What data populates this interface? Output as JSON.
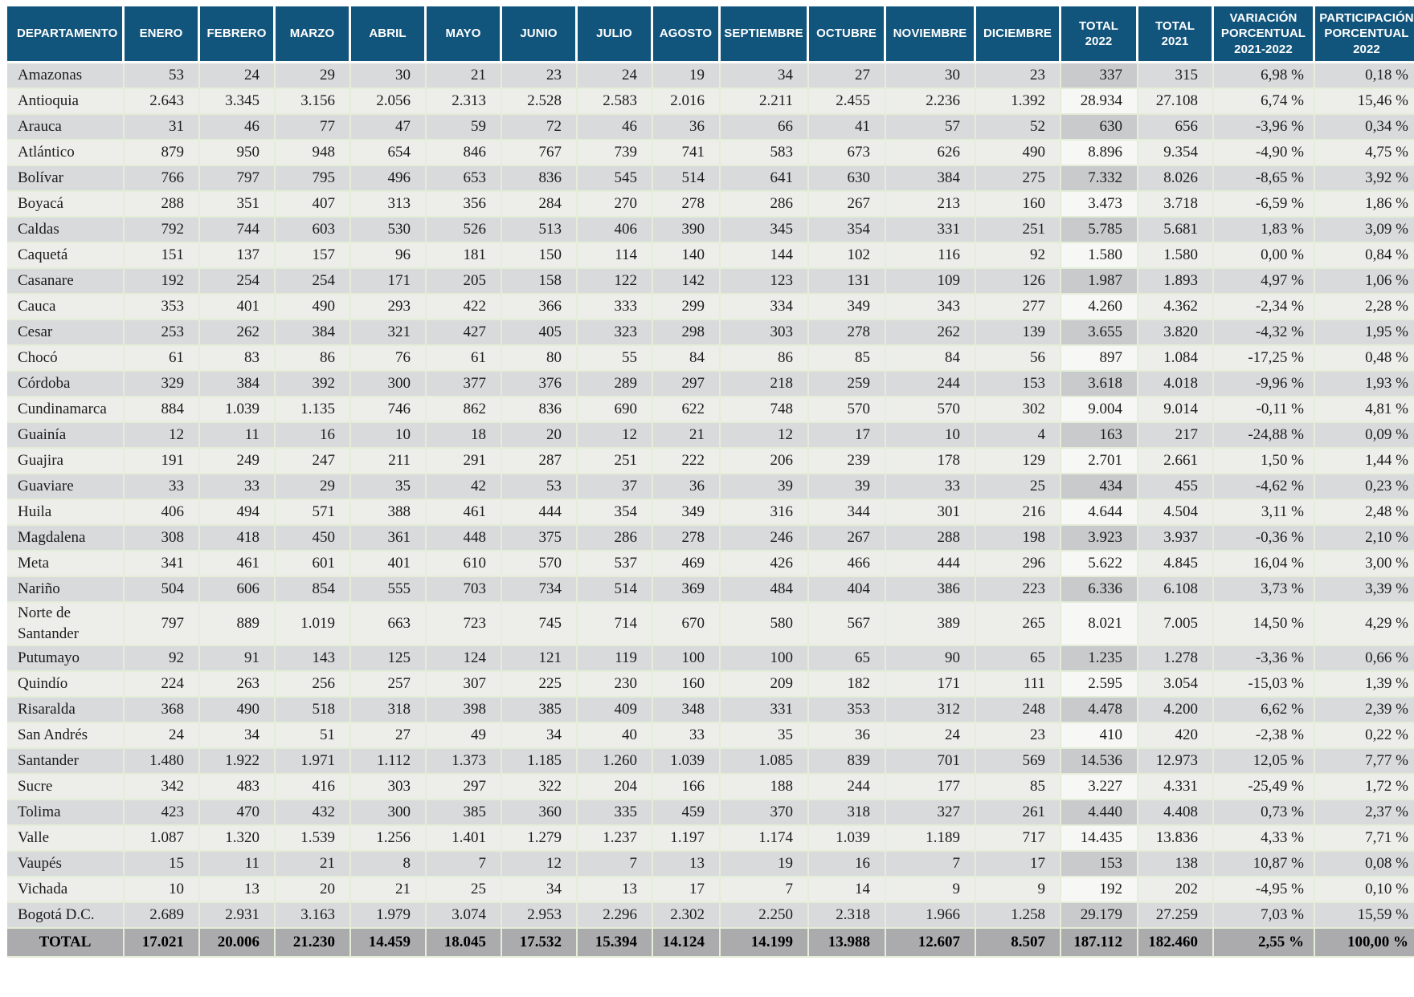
{
  "colors": {
    "header_bg": "#11547c",
    "header_text": "#ffffff",
    "row_odd": "#d9dadb",
    "row_even": "#edeeea",
    "t22_odd": "#c9cacc",
    "t22_even": "#f7f8f5",
    "total_row_bg": "#ababad",
    "grid_line": "#e3edd8",
    "body_text": "#1c1c1c"
  },
  "table": {
    "headers": [
      "DEPARTAMENTO",
      "ENERO",
      "FEBRERO",
      "MARZO",
      "ABRIL",
      "MAYO",
      "JUNIO",
      "JULIO",
      "AGOSTO",
      "SEPTIEMBRE",
      "OCTUBRE",
      "NOVIEMBRE",
      "DICIEMBRE",
      "TOTAL\n2022",
      "TOTAL\n2021",
      "VARIACIÓN\nPORCENTUAL\n2021-2022",
      "PARTICIPACIÓN\nPORCENTUAL\n2022"
    ],
    "rows": [
      {
        "department": "Amazonas",
        "values": [
          "53",
          "24",
          "29",
          "30",
          "21",
          "23",
          "24",
          "19",
          "34",
          "27",
          "30",
          "23",
          "337",
          "315",
          "6,98 %",
          "0,18 %"
        ]
      },
      {
        "department": "Antioquia",
        "values": [
          "2.643",
          "3.345",
          "3.156",
          "2.056",
          "2.313",
          "2.528",
          "2.583",
          "2.016",
          "2.211",
          "2.455",
          "2.236",
          "1.392",
          "28.934",
          "27.108",
          "6,74 %",
          "15,46 %"
        ]
      },
      {
        "department": "Arauca",
        "values": [
          "31",
          "46",
          "77",
          "47",
          "59",
          "72",
          "46",
          "36",
          "66",
          "41",
          "57",
          "52",
          "630",
          "656",
          "-3,96 %",
          "0,34 %"
        ]
      },
      {
        "department": "Atlántico",
        "values": [
          "879",
          "950",
          "948",
          "654",
          "846",
          "767",
          "739",
          "741",
          "583",
          "673",
          "626",
          "490",
          "8.896",
          "9.354",
          "-4,90 %",
          "4,75 %"
        ]
      },
      {
        "department": "Bolívar",
        "values": [
          "766",
          "797",
          "795",
          "496",
          "653",
          "836",
          "545",
          "514",
          "641",
          "630",
          "384",
          "275",
          "7.332",
          "8.026",
          "-8,65 %",
          "3,92 %"
        ]
      },
      {
        "department": "Boyacá",
        "values": [
          "288",
          "351",
          "407",
          "313",
          "356",
          "284",
          "270",
          "278",
          "286",
          "267",
          "213",
          "160",
          "3.473",
          "3.718",
          "-6,59 %",
          "1,86 %"
        ]
      },
      {
        "department": "Caldas",
        "values": [
          "792",
          "744",
          "603",
          "530",
          "526",
          "513",
          "406",
          "390",
          "345",
          "354",
          "331",
          "251",
          "5.785",
          "5.681",
          "1,83 %",
          "3,09 %"
        ]
      },
      {
        "department": "Caquetá",
        "values": [
          "151",
          "137",
          "157",
          "96",
          "181",
          "150",
          "114",
          "140",
          "144",
          "102",
          "116",
          "92",
          "1.580",
          "1.580",
          "0,00 %",
          "0,84 %"
        ]
      },
      {
        "department": "Casanare",
        "values": [
          "192",
          "254",
          "254",
          "171",
          "205",
          "158",
          "122",
          "142",
          "123",
          "131",
          "109",
          "126",
          "1.987",
          "1.893",
          "4,97 %",
          "1,06 %"
        ]
      },
      {
        "department": "Cauca",
        "values": [
          "353",
          "401",
          "490",
          "293",
          "422",
          "366",
          "333",
          "299",
          "334",
          "349",
          "343",
          "277",
          "4.260",
          "4.362",
          "-2,34 %",
          "2,28 %"
        ]
      },
      {
        "department": "Cesar",
        "values": [
          "253",
          "262",
          "384",
          "321",
          "427",
          "405",
          "323",
          "298",
          "303",
          "278",
          "262",
          "139",
          "3.655",
          "3.820",
          "-4,32 %",
          "1,95 %"
        ]
      },
      {
        "department": "Chocó",
        "values": [
          "61",
          "83",
          "86",
          "76",
          "61",
          "80",
          "55",
          "84",
          "86",
          "85",
          "84",
          "56",
          "897",
          "1.084",
          "-17,25 %",
          "0,48 %"
        ]
      },
      {
        "department": "Córdoba",
        "values": [
          "329",
          "384",
          "392",
          "300",
          "377",
          "376",
          "289",
          "297",
          "218",
          "259",
          "244",
          "153",
          "3.618",
          "4.018",
          "-9,96 %",
          "1,93 %"
        ]
      },
      {
        "department": "Cundinamarca",
        "values": [
          "884",
          "1.039",
          "1.135",
          "746",
          "862",
          "836",
          "690",
          "622",
          "748",
          "570",
          "570",
          "302",
          "9.004",
          "9.014",
          "-0,11 %",
          "4,81 %"
        ]
      },
      {
        "department": "Guainía",
        "values": [
          "12",
          "11",
          "16",
          "10",
          "18",
          "20",
          "12",
          "21",
          "12",
          "17",
          "10",
          "4",
          "163",
          "217",
          "-24,88 %",
          "0,09 %"
        ]
      },
      {
        "department": "Guajira",
        "values": [
          "191",
          "249",
          "247",
          "211",
          "291",
          "287",
          "251",
          "222",
          "206",
          "239",
          "178",
          "129",
          "2.701",
          "2.661",
          "1,50 %",
          "1,44 %"
        ]
      },
      {
        "department": "Guaviare",
        "values": [
          "33",
          "33",
          "29",
          "35",
          "42",
          "53",
          "37",
          "36",
          "39",
          "39",
          "33",
          "25",
          "434",
          "455",
          "-4,62 %",
          "0,23 %"
        ]
      },
      {
        "department": "Huila",
        "values": [
          "406",
          "494",
          "571",
          "388",
          "461",
          "444",
          "354",
          "349",
          "316",
          "344",
          "301",
          "216",
          "4.644",
          "4.504",
          "3,11 %",
          "2,48 %"
        ]
      },
      {
        "department": "Magdalena",
        "values": [
          "308",
          "418",
          "450",
          "361",
          "448",
          "375",
          "286",
          "278",
          "246",
          "267",
          "288",
          "198",
          "3.923",
          "3.937",
          "-0,36 %",
          "2,10 %"
        ]
      },
      {
        "department": "Meta",
        "values": [
          "341",
          "461",
          "601",
          "401",
          "610",
          "570",
          "537",
          "469",
          "426",
          "466",
          "444",
          "296",
          "5.622",
          "4.845",
          "16,04 %",
          "3,00 %"
        ]
      },
      {
        "department": "Nariño",
        "values": [
          "504",
          "606",
          "854",
          "555",
          "703",
          "734",
          "514",
          "369",
          "484",
          "404",
          "386",
          "223",
          "6.336",
          "6.108",
          "3,73 %",
          "3,39 %"
        ]
      },
      {
        "department": "Norte de Santander",
        "values": [
          "797",
          "889",
          "1.019",
          "663",
          "723",
          "745",
          "714",
          "670",
          "580",
          "567",
          "389",
          "265",
          "8.021",
          "7.005",
          "14,50 %",
          "4,29 %"
        ]
      },
      {
        "department": "Putumayo",
        "values": [
          "92",
          "91",
          "143",
          "125",
          "124",
          "121",
          "119",
          "100",
          "100",
          "65",
          "90",
          "65",
          "1.235",
          "1.278",
          "-3,36 %",
          "0,66 %"
        ]
      },
      {
        "department": "Quindío",
        "values": [
          "224",
          "263",
          "256",
          "257",
          "307",
          "225",
          "230",
          "160",
          "209",
          "182",
          "171",
          "111",
          "2.595",
          "3.054",
          "-15,03 %",
          "1,39 %"
        ]
      },
      {
        "department": "Risaralda",
        "values": [
          "368",
          "490",
          "518",
          "318",
          "398",
          "385",
          "409",
          "348",
          "331",
          "353",
          "312",
          "248",
          "4.478",
          "4.200",
          "6,62 %",
          "2,39 %"
        ]
      },
      {
        "department": "San Andrés",
        "values": [
          "24",
          "34",
          "51",
          "27",
          "49",
          "34",
          "40",
          "33",
          "35",
          "36",
          "24",
          "23",
          "410",
          "420",
          "-2,38 %",
          "0,22 %"
        ]
      },
      {
        "department": "Santander",
        "values": [
          "1.480",
          "1.922",
          "1.971",
          "1.112",
          "1.373",
          "1.185",
          "1.260",
          "1.039",
          "1.085",
          "839",
          "701",
          "569",
          "14.536",
          "12.973",
          "12,05 %",
          "7,77 %"
        ]
      },
      {
        "department": "Sucre",
        "values": [
          "342",
          "483",
          "416",
          "303",
          "297",
          "322",
          "204",
          "166",
          "188",
          "244",
          "177",
          "85",
          "3.227",
          "4.331",
          "-25,49 %",
          "1,72 %"
        ]
      },
      {
        "department": "Tolima",
        "values": [
          "423",
          "470",
          "432",
          "300",
          "385",
          "360",
          "335",
          "459",
          "370",
          "318",
          "327",
          "261",
          "4.440",
          "4.408",
          "0,73 %",
          "2,37 %"
        ]
      },
      {
        "department": "Valle",
        "values": [
          "1.087",
          "1.320",
          "1.539",
          "1.256",
          "1.401",
          "1.279",
          "1.237",
          "1.197",
          "1.174",
          "1.039",
          "1.189",
          "717",
          "14.435",
          "13.836",
          "4,33 %",
          "7,71 %"
        ]
      },
      {
        "department": "Vaupés",
        "values": [
          "15",
          "11",
          "21",
          "8",
          "7",
          "12",
          "7",
          "13",
          "19",
          "16",
          "7",
          "17",
          "153",
          "138",
          "10,87 %",
          "0,08 %"
        ]
      },
      {
        "department": "Vichada",
        "values": [
          "10",
          "13",
          "20",
          "21",
          "25",
          "34",
          "13",
          "17",
          "7",
          "14",
          "9",
          "9",
          "192",
          "202",
          "-4,95 %",
          "0,10 %"
        ]
      },
      {
        "department": "Bogotá D.C.",
        "values": [
          "2.689",
          "2.931",
          "3.163",
          "1.979",
          "3.074",
          "2.953",
          "2.296",
          "2.302",
          "2.250",
          "2.318",
          "1.966",
          "1.258",
          "29.179",
          "27.259",
          "7,03 %",
          "15,59 %"
        ]
      }
    ],
    "total": {
      "department": "TOTAL",
      "values": [
        "17.021",
        "20.006",
        "21.230",
        "14.459",
        "18.045",
        "17.532",
        "15.394",
        "14.124",
        "14.199",
        "13.988",
        "12.607",
        "8.507",
        "187.112",
        "182.460",
        "2,55 %",
        "100,00 %"
      ]
    }
  }
}
